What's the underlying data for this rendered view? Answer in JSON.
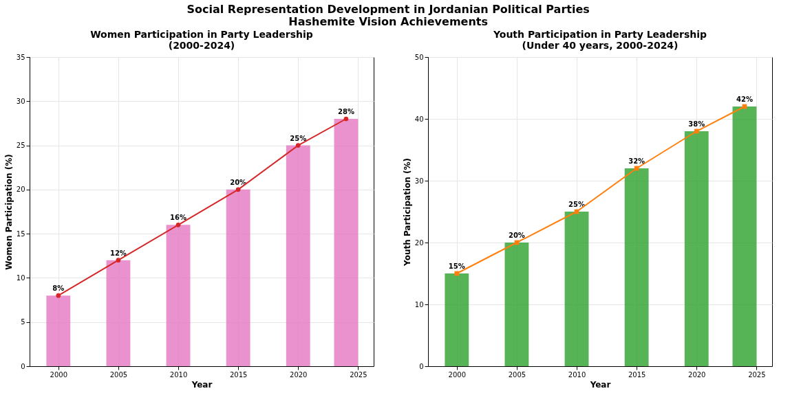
{
  "chart_data": [
    {
      "type": "bar",
      "title": "Women Participation in Party Leadership\n(2000-2024)",
      "annotations": [
        "Social Representation Development in Jordanian Political Parties\nHashemite Vision Achievements"
      ],
      "xlabel": "Year",
      "ylabel": "Women Participation (%)",
      "x": [
        2000,
        2005,
        2010,
        2015,
        2020,
        2024
      ],
      "series": [
        {
          "color": "#e377c2",
          "values": [
            8,
            12,
            16,
            20,
            25,
            28
          ],
          "value_labels": [
            "8%",
            "12%",
            "16%",
            "20%",
            "25%",
            "28%"
          ]
        },
        {
          "type": "line",
          "color": "#d62728",
          "marker": "circle",
          "values": [
            8,
            12,
            16,
            20,
            25,
            28
          ]
        }
      ],
      "xlim": [
        1997.6,
        2026.3
      ],
      "xticks": [
        2000,
        2005,
        2010,
        2015,
        2020,
        2025
      ],
      "ylim": [
        0,
        35
      ],
      "yticks": [
        0,
        5,
        10,
        15,
        20,
        25,
        30,
        35
      ],
      "grid": true
    },
    {
      "type": "bar",
      "title": "Youth Participation in Party Leadership\n(Under 40 years, 2000-2024)",
      "xlabel": "Year",
      "ylabel": "Youth Participation (%)",
      "x": [
        2000,
        2005,
        2010,
        2015,
        2020,
        2024
      ],
      "series": [
        {
          "color": "#2ca02c",
          "values": [
            15,
            20,
            25,
            32,
            38,
            42
          ],
          "value_labels": [
            "15%",
            "20%",
            "25%",
            "32%",
            "38%",
            "42%"
          ]
        },
        {
          "type": "line",
          "color": "#ff7f0e",
          "marker": "square",
          "values": [
            15,
            20,
            25,
            32,
            38,
            42
          ]
        }
      ],
      "xlim": [
        1997.6,
        2026.3
      ],
      "xticks": [
        2000,
        2005,
        2010,
        2015,
        2020,
        2025
      ],
      "ylim": [
        0,
        50
      ],
      "yticks": [
        0,
        10,
        20,
        30,
        40,
        50
      ],
      "grid": true
    }
  ]
}
